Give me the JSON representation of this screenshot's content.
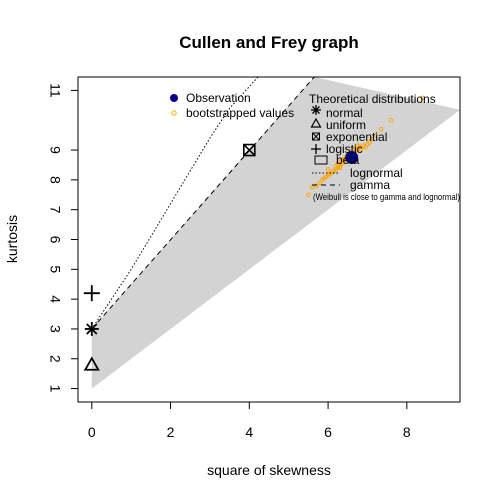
{
  "chart_data": {
    "type": "scatter",
    "title": "Cullen and Frey graph",
    "xlabel": "square of skewness",
    "ylabel": "kurtosis",
    "xlim": [
      -0.35,
      9.35
    ],
    "ylim": [
      11.45,
      0.55
    ],
    "y_reversed": true,
    "x_ticks": [
      0,
      2,
      4,
      6,
      8
    ],
    "y_ticks": [
      1,
      2,
      3,
      4,
      5,
      6,
      7,
      8,
      9,
      11
    ],
    "observation": {
      "x": 6.6,
      "y": 8.75
    },
    "bootstrapped": [
      [
        5.5,
        7.5
      ],
      [
        5.6,
        7.75
      ],
      [
        5.7,
        7.8
      ],
      [
        5.8,
        7.9
      ],
      [
        5.85,
        8.0
      ],
      [
        5.9,
        8.05
      ],
      [
        5.95,
        8.1
      ],
      [
        6.0,
        8.15
      ],
      [
        6.05,
        8.2
      ],
      [
        6.1,
        8.25
      ],
      [
        6.15,
        8.3
      ],
      [
        6.2,
        8.35
      ],
      [
        6.2,
        8.45
      ],
      [
        6.25,
        8.4
      ],
      [
        6.25,
        8.55
      ],
      [
        6.3,
        8.45
      ],
      [
        6.3,
        8.6
      ],
      [
        6.35,
        8.55
      ],
      [
        6.35,
        8.65
      ],
      [
        6.4,
        8.6
      ],
      [
        6.4,
        8.7
      ],
      [
        6.45,
        8.65
      ],
      [
        6.45,
        8.75
      ],
      [
        6.5,
        8.7
      ],
      [
        6.5,
        8.85
      ],
      [
        6.55,
        8.8
      ],
      [
        6.6,
        8.9
      ],
      [
        6.65,
        8.85
      ],
      [
        6.65,
        9.0
      ],
      [
        6.7,
        8.95
      ],
      [
        6.7,
        9.05
      ],
      [
        6.75,
        9.0
      ],
      [
        6.8,
        9.1
      ],
      [
        6.85,
        9.05
      ],
      [
        6.9,
        9.15
      ],
      [
        6.95,
        9.1
      ],
      [
        7.0,
        9.2
      ],
      [
        7.05,
        9.25
      ],
      [
        7.1,
        9.35
      ],
      [
        7.2,
        9.5
      ],
      [
        7.35,
        9.7
      ],
      [
        7.6,
        10.0
      ],
      [
        8.4,
        10.75
      ],
      [
        6.0,
        8.35
      ],
      [
        6.3,
        8.4
      ],
      [
        6.55,
        8.95
      ],
      [
        6.75,
        9.15
      ]
    ],
    "distributions": {
      "normal": {
        "x": 0,
        "y": 3
      },
      "uniform": {
        "x": 0,
        "y": 1.8
      },
      "exponential": {
        "x": 4,
        "y": 9
      },
      "logistic": {
        "x": 0,
        "y": 4.2
      },
      "beta_region_upper": [
        [
          0,
          1
        ],
        [
          9.35,
          10.35
        ]
      ],
      "beta_region_lower": [
        [
          0,
          3
        ],
        [
          4,
          9
        ],
        [
          5.65,
          11.45
        ]
      ],
      "lognormal_line": [
        [
          0,
          3
        ],
        [
          0.5,
          4.0
        ],
        [
          1.0,
          5.0
        ],
        [
          1.5,
          6.1
        ],
        [
          2.0,
          7.2
        ],
        [
          2.5,
          8.3
        ],
        [
          3.0,
          9.4
        ],
        [
          3.5,
          10.4
        ],
        [
          4.22,
          11.45
        ]
      ],
      "gamma_line": [
        [
          0,
          3
        ],
        [
          5.65,
          11.45
        ]
      ]
    },
    "colors": {
      "observation": "#00008B",
      "bootstrapped": "#FFA500",
      "beta_fill": "#D3D3D3"
    },
    "legend": {
      "observation_label": "Observation",
      "bootstrapped_label": "bootstrapped values",
      "theoretical_title": "Theoretical distributions",
      "normal_label": "normal",
      "uniform_label": "uniform",
      "exponential_label": "exponential",
      "logistic_label": "logistic",
      "beta_label": "beta",
      "lognormal_label": "lognormal",
      "gamma_label": "gamma",
      "weibull_note": "(Weibull is close to gamma and lognormal)"
    }
  }
}
